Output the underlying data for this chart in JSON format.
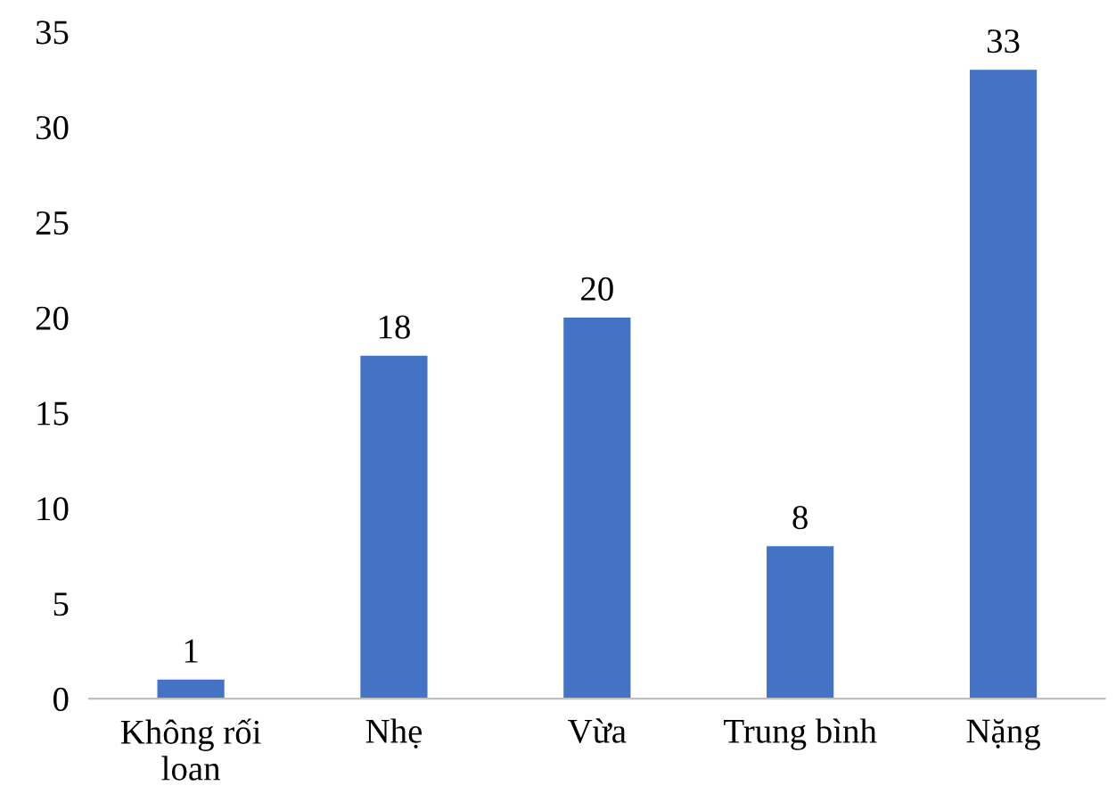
{
  "chart_data": {
    "type": "bar",
    "categories": [
      "Không rối\nloan",
      "Nhẹ",
      "Vừa",
      "Trung bình",
      "Nặng"
    ],
    "values": [
      1,
      18,
      20,
      8,
      33
    ],
    "color": "#4472c4",
    "ylim": [
      0,
      35
    ],
    "yticks": [
      0,
      5,
      10,
      15,
      20,
      25,
      30,
      35
    ],
    "grid": false,
    "data_labels": true
  }
}
